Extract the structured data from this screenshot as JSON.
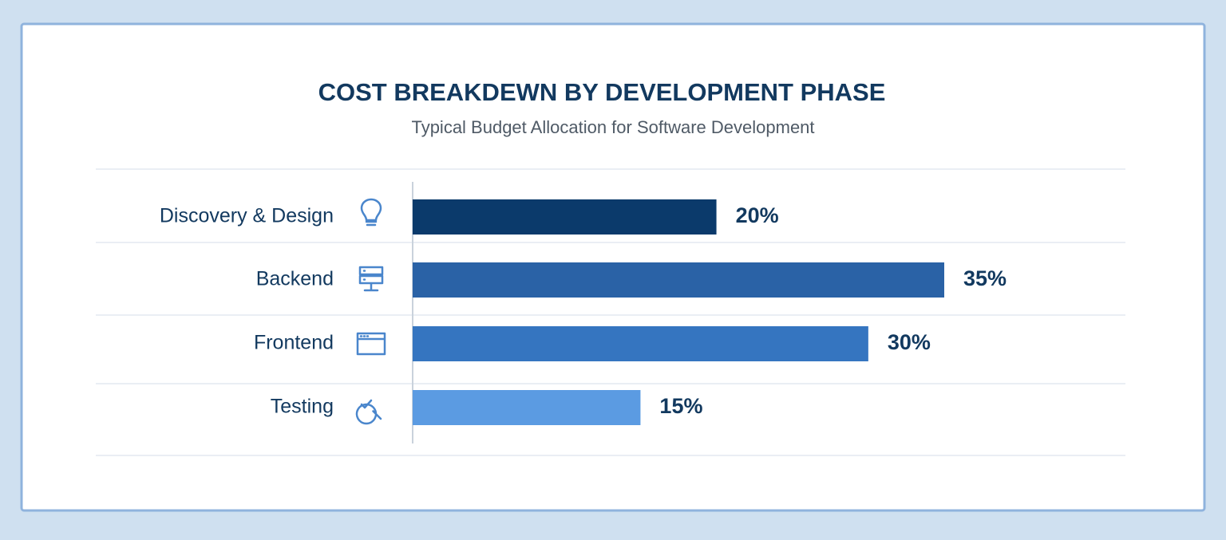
{
  "chart_data": {
    "type": "bar",
    "orientation": "horizontal",
    "title": "COST BREAKDEWN BY DEVELOPMENT PHASE",
    "subtitle": "Typical Budget Allocation for Software Development",
    "categories": [
      "Discovery & Design",
      "Backend",
      "Frontend",
      "Testing"
    ],
    "values": [
      20,
      35,
      30,
      15
    ],
    "value_labels": [
      "20%",
      "35%",
      "30%",
      "15%"
    ],
    "colors": [
      "#0b3a6b",
      "#2a62a6",
      "#3575c0",
      "#5b9be2"
    ]
  }
}
